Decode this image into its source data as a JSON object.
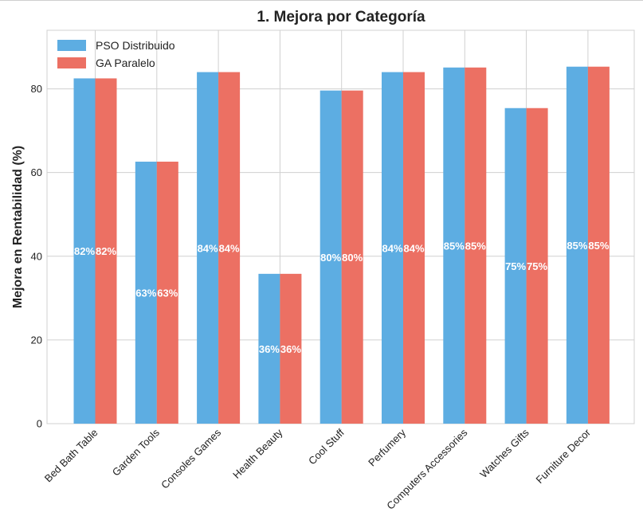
{
  "chart_data": {
    "type": "bar",
    "title": "1. Mejora por Categoría",
    "ylabel": "Mejora en Rentabilidad (%)",
    "xlabel": "",
    "categories": [
      "Bed Bath Table",
      "Garden Tools",
      "Consoles Games",
      "Health Beauty",
      "Cool Stuff",
      "Perfumery",
      "Computers Accessories",
      "Watches Gifts",
      "Furniture Decor"
    ],
    "series": [
      {
        "name": "PSO Distribuido",
        "color": "#5DADE2",
        "values": [
          82.5,
          62.6,
          84.0,
          35.8,
          79.6,
          84.0,
          85.1,
          75.4,
          85.3
        ],
        "labels": [
          "82%",
          "63%",
          "84%",
          "36%",
          "80%",
          "84%",
          "85%",
          "75%",
          "85%"
        ]
      },
      {
        "name": "GA Paralelo",
        "color": "#EC7063",
        "values": [
          82.5,
          62.6,
          84.0,
          35.8,
          79.6,
          84.0,
          85.1,
          75.4,
          85.3
        ],
        "labels": [
          "82%",
          "63%",
          "84%",
          "36%",
          "80%",
          "84%",
          "85%",
          "75%",
          "85%"
        ]
      }
    ],
    "ylim": [
      0,
      94
    ],
    "yticks": [
      "0",
      "20",
      "40",
      "60",
      "80"
    ],
    "grid": true,
    "legend_position": "top-left"
  }
}
